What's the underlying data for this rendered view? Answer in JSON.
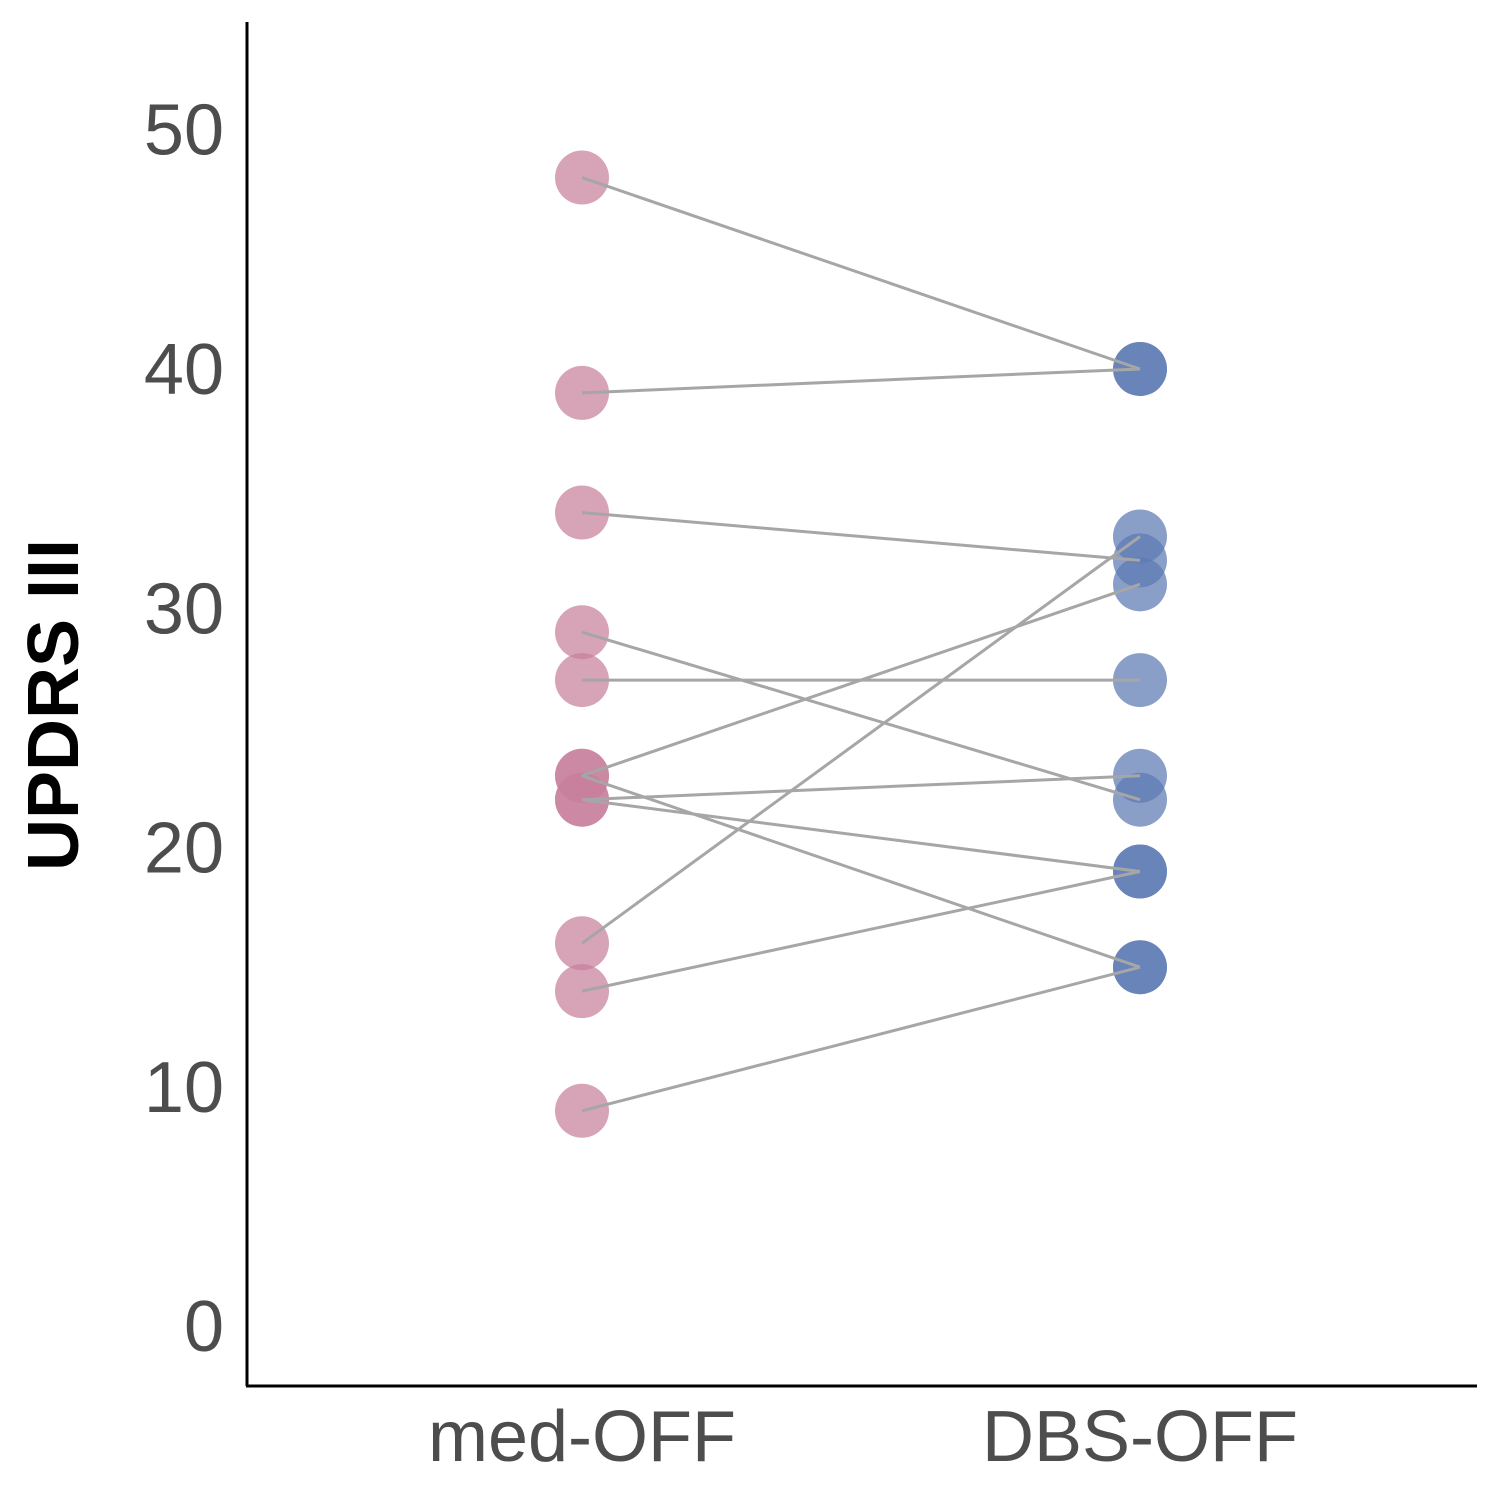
{
  "chart_data": {
    "type": "scatter",
    "title": "",
    "xlabel": "",
    "ylabel": "UPDRS III",
    "categories": [
      "med-OFF",
      "DBS-OFF"
    ],
    "ylim": [
      -2.5,
      54.5
    ],
    "yticks": [
      0,
      10,
      20,
      30,
      40,
      50
    ],
    "grid": false,
    "legend": "none",
    "colors": {
      "med_off": "#c7809b",
      "dbs_off": "#5d7ab3",
      "line": "#a6a6a6",
      "axis": "#000000"
    },
    "pairs": [
      {
        "med_off": 48,
        "dbs_off": 40
      },
      {
        "med_off": 39,
        "dbs_off": 40
      },
      {
        "med_off": 34,
        "dbs_off": 32
      },
      {
        "med_off": 29,
        "dbs_off": 22
      },
      {
        "med_off": 27,
        "dbs_off": 27
      },
      {
        "med_off": 23,
        "dbs_off": 31
      },
      {
        "med_off": 23,
        "dbs_off": 15
      },
      {
        "med_off": 22,
        "dbs_off": 23
      },
      {
        "med_off": 22,
        "dbs_off": 19
      },
      {
        "med_off": 16,
        "dbs_off": 33
      },
      {
        "med_off": 14,
        "dbs_off": 19
      },
      {
        "med_off": 9,
        "dbs_off": 15
      }
    ]
  }
}
